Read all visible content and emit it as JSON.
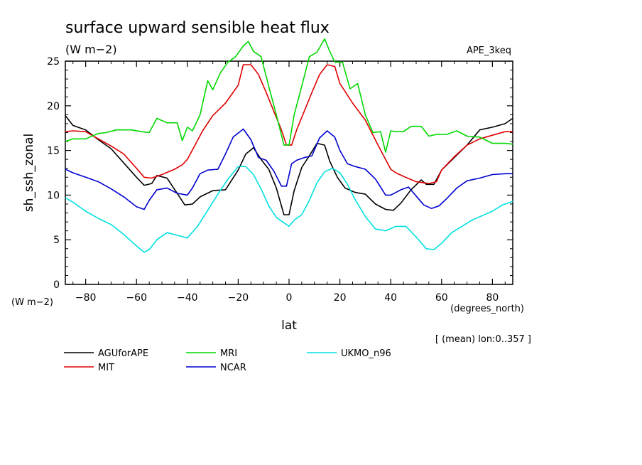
{
  "chart_data": {
    "type": "line",
    "title": "surface upward sensible heat flux",
    "units": "(W m−2)",
    "experiment": "APE_3keq",
    "xlabel": "lat",
    "x_units": "(degrees_north)",
    "ylabel": "sh_ssh_zonal",
    "y_units": "(W m−2)",
    "note": "[ (mean) lon:0..357 ]",
    "xlim": [
      -88,
      88
    ],
    "ylim": [
      0,
      25
    ],
    "x_ticks": [
      -80,
      -60,
      -40,
      -20,
      0,
      20,
      40,
      60,
      80
    ],
    "y_ticks": [
      0,
      5,
      10,
      15,
      20,
      25
    ],
    "grid": false,
    "legend_position": "bottom",
    "series": [
      {
        "name": "AGUforAPE",
        "color": "#000000",
        "x": [
          -88,
          -85,
          -80,
          -75,
          -70,
          -65,
          -60,
          -57,
          -54,
          -52,
          -48,
          -44,
          -41,
          -38,
          -35,
          -30,
          -25,
          -20,
          -17,
          -14,
          -11,
          -8,
          -5,
          -2,
          0,
          2,
          5,
          8,
          11,
          14,
          16,
          19,
          22,
          26,
          30,
          34,
          38,
          41,
          44,
          48,
          52,
          54,
          57,
          60,
          65,
          70,
          75,
          80,
          85,
          88
        ],
        "y": [
          18.9,
          17.8,
          17.3,
          16.2,
          15.2,
          13.6,
          12.0,
          11.1,
          11.3,
          12.2,
          11.9,
          10.2,
          8.9,
          9.0,
          9.8,
          10.5,
          10.6,
          12.8,
          14.6,
          15.3,
          14.0,
          12.9,
          10.8,
          7.8,
          7.8,
          10.5,
          13.1,
          14.4,
          15.8,
          15.6,
          13.8,
          12.0,
          10.8,
          10.3,
          10.1,
          9.0,
          8.4,
          8.3,
          9.1,
          10.6,
          11.7,
          11.2,
          11.2,
          12.8,
          14.2,
          15.6,
          17.3,
          17.6,
          18.0,
          18.6
        ]
      },
      {
        "name": "MIT",
        "color": "#e00000",
        "x": [
          -88,
          -85,
          -80,
          -75,
          -70,
          -65,
          -60,
          -57,
          -54,
          -50,
          -45,
          -42,
          -40,
          -37,
          -34,
          -30,
          -25,
          -20,
          -18,
          -15,
          -12,
          -9,
          -6,
          -3,
          -1,
          1,
          3,
          6,
          9,
          12,
          15,
          18,
          20,
          25,
          30,
          35,
          40,
          42,
          45,
          50,
          55,
          58,
          60,
          65,
          70,
          75,
          80,
          85,
          88
        ],
        "y": [
          17.1,
          17.2,
          17.1,
          16.3,
          15.5,
          14.6,
          13.0,
          12.0,
          11.9,
          12.3,
          12.9,
          13.4,
          14.0,
          15.6,
          17.2,
          18.9,
          20.3,
          22.3,
          24.6,
          24.6,
          23.5,
          21.5,
          19.4,
          17.3,
          15.6,
          15.6,
          17.3,
          19.4,
          21.5,
          23.5,
          24.6,
          24.4,
          22.5,
          20.3,
          18.4,
          15.6,
          12.9,
          12.5,
          12.1,
          11.5,
          11.3,
          11.5,
          12.8,
          14.3,
          15.6,
          16.3,
          16.7,
          17.1,
          17.1
        ]
      },
      {
        "name": "MRI",
        "color": "#00d800",
        "x": [
          -88,
          -85,
          -80,
          -75,
          -72,
          -68,
          -65,
          -62,
          -58,
          -55,
          -52,
          -48,
          -44,
          -42,
          -40,
          -38,
          -35,
          -32,
          -30,
          -27,
          -24,
          -21,
          -18,
          -16,
          -14,
          -11,
          -8,
          -5,
          -2,
          0,
          2,
          5,
          8,
          11,
          14,
          16,
          18,
          21,
          24,
          27,
          30,
          33,
          36,
          38,
          40,
          42,
          45,
          48,
          52,
          55,
          58,
          62,
          66,
          70,
          75,
          80,
          85,
          88
        ],
        "y": [
          16.0,
          16.3,
          16.3,
          16.9,
          17.0,
          17.3,
          17.3,
          17.3,
          17.1,
          17.0,
          18.6,
          18.1,
          18.1,
          16.1,
          17.6,
          17.2,
          19.0,
          22.8,
          21.8,
          23.7,
          24.9,
          25.5,
          26.7,
          27.2,
          26.1,
          25.5,
          22.2,
          19.0,
          15.6,
          15.6,
          19.0,
          22.2,
          25.5,
          26.0,
          27.5,
          26.1,
          24.9,
          24.9,
          21.9,
          22.5,
          19.0,
          17.0,
          17.1,
          14.8,
          17.2,
          17.1,
          17.1,
          17.7,
          17.7,
          16.6,
          16.8,
          16.8,
          17.2,
          16.6,
          16.5,
          15.8,
          15.8,
          15.7
        ]
      },
      {
        "name": "NCAR",
        "color": "#0000d0",
        "x": [
          -88,
          -85,
          -80,
          -75,
          -70,
          -65,
          -60,
          -57,
          -55,
          -52,
          -48,
          -44,
          -40,
          -38,
          -35,
          -32,
          -28,
          -25,
          -22,
          -18,
          -15,
          -12,
          -9,
          -6,
          -3,
          -1,
          1,
          3,
          6,
          9,
          12,
          15,
          18,
          20,
          23,
          26,
          30,
          34,
          38,
          40,
          44,
          47,
          50,
          53,
          56,
          59,
          62,
          66,
          70,
          75,
          80,
          85,
          88
        ],
        "y": [
          12.9,
          12.5,
          12.0,
          11.5,
          10.7,
          9.8,
          8.7,
          8.4,
          9.4,
          10.6,
          10.8,
          10.2,
          10.0,
          10.8,
          12.4,
          12.8,
          12.9,
          14.6,
          16.5,
          17.4,
          16.2,
          14.2,
          13.9,
          12.7,
          11.0,
          11.0,
          13.5,
          13.9,
          14.2,
          14.4,
          16.4,
          17.2,
          16.5,
          15.0,
          13.5,
          13.2,
          12.9,
          11.8,
          10.0,
          10.0,
          10.6,
          10.9,
          9.9,
          8.9,
          8.5,
          8.8,
          9.6,
          10.8,
          11.6,
          11.9,
          12.3,
          12.4,
          12.4
        ]
      },
      {
        "name": "UKMO_n96",
        "color": "#00e0e0",
        "x": [
          -88,
          -85,
          -80,
          -75,
          -70,
          -65,
          -60,
          -57,
          -55,
          -52,
          -48,
          -44,
          -40,
          -36,
          -32,
          -28,
          -24,
          -20,
          -17,
          -14,
          -11,
          -8,
          -5,
          -2,
          0,
          2,
          5,
          8,
          11,
          14,
          17,
          20,
          23,
          26,
          30,
          34,
          38,
          42,
          46,
          50,
          54,
          57,
          60,
          64,
          68,
          72,
          76,
          80,
          84,
          88
        ],
        "y": [
          9.7,
          9.2,
          8.2,
          7.4,
          6.7,
          5.6,
          4.3,
          3.6,
          3.9,
          5.0,
          5.8,
          5.5,
          5.2,
          6.5,
          8.3,
          10.1,
          11.8,
          13.2,
          13.2,
          12.3,
          10.7,
          8.8,
          7.5,
          6.9,
          6.5,
          7.2,
          7.8,
          9.4,
          11.4,
          12.6,
          13.0,
          12.5,
          11.2,
          9.5,
          7.6,
          6.2,
          6.0,
          6.5,
          6.5,
          5.3,
          4.0,
          3.9,
          4.6,
          5.8,
          6.5,
          7.2,
          7.7,
          8.2,
          8.9,
          9.3
        ]
      }
    ]
  }
}
